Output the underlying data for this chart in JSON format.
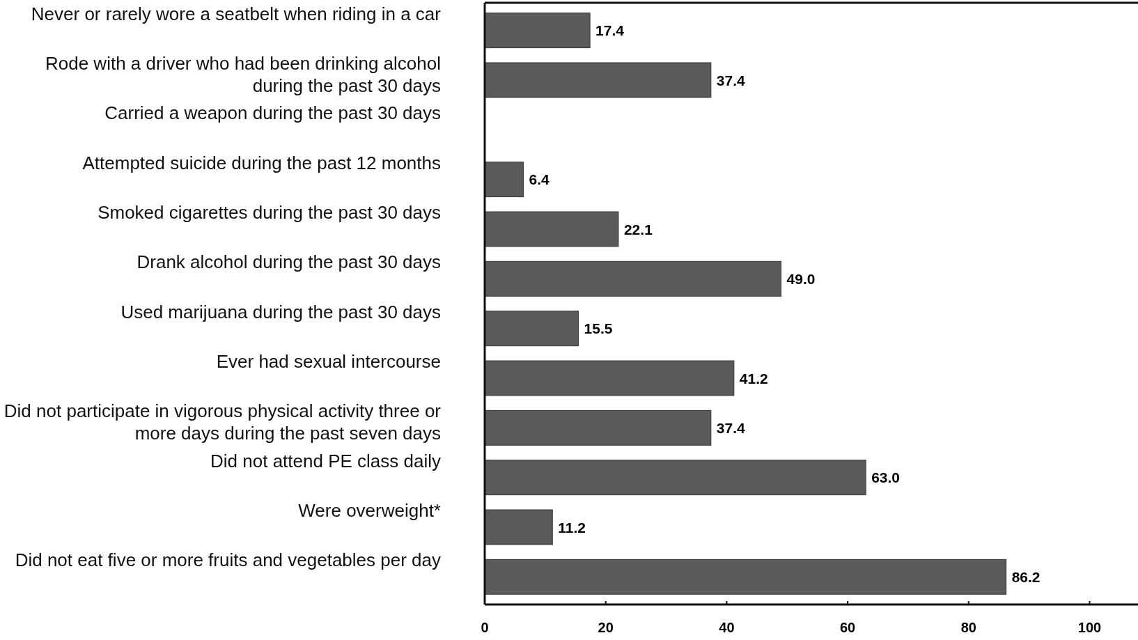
{
  "chart_data": {
    "type": "bar",
    "orientation": "horizontal",
    "categories": [
      "Never or rarely wore a seatbelt when riding in a car",
      "Rode with a driver who had been drinking alcohol during the past 30 days",
      "Carried a weapon during the past 30 days",
      "Attempted suicide during the past 12 months",
      "Smoked cigarettes during the past 30 days",
      "Drank alcohol during the past 30 days",
      "Used marijuana during the past 30 days",
      "Ever had sexual intercourse",
      "Did not participate in vigorous physical activity three or more days during the past seven days",
      "Did not attend PE class daily",
      "Were overweight*",
      "Did not eat five or more fruits and vegetables per day"
    ],
    "values": [
      17.4,
      37.4,
      null,
      6.4,
      22.1,
      49,
      15.5,
      41.2,
      37.4,
      63,
      11.2,
      86.2
    ],
    "value_labels": [
      "17.4",
      "37.4",
      null,
      "6.4",
      "22.1",
      "49.0",
      "15.5",
      "41.2",
      "37.4",
      "63.0",
      "11.2",
      "86.2"
    ],
    "color": "#5a5a5a",
    "xlim": [
      0,
      108
    ],
    "xticks": [
      0,
      20,
      40,
      60,
      80,
      100
    ],
    "grid": false
  }
}
